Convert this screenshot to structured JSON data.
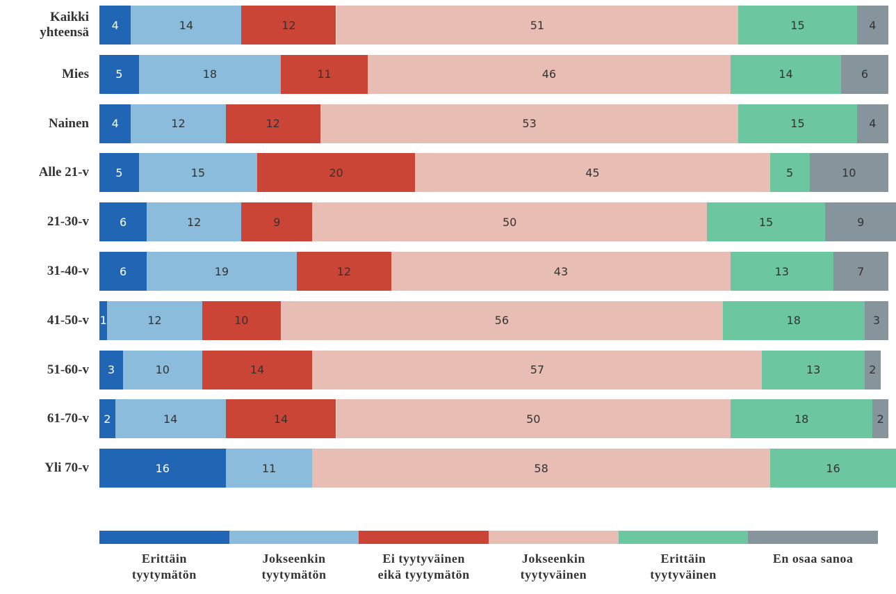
{
  "chart_data": {
    "type": "stacked-bar-horizontal",
    "categories": [
      "Kaikki yhteensä",
      "Mies",
      "Nainen",
      "Alle 21-v",
      "21-30-v",
      "31-40-v",
      "41-50-v",
      "51-60-v",
      "61-70-v",
      "Yli 70-v"
    ],
    "series": [
      {
        "name": "Erittäin tyytymätön",
        "color": "#2166b5",
        "values": [
          4,
          5,
          4,
          5,
          6,
          6,
          1,
          3,
          2,
          16
        ]
      },
      {
        "name": "Jokseenkin tyytymätön",
        "color": "#8bbcdb",
        "values": [
          14,
          18,
          12,
          15,
          12,
          19,
          12,
          10,
          14,
          11
        ]
      },
      {
        "name": "Ei tyytyväinen eikä tyytymätön",
        "color": "#cb4536",
        "values": [
          12,
          11,
          12,
          20,
          9,
          12,
          10,
          14,
          14,
          null
        ]
      },
      {
        "name": "Jokseenkin tyytyväinen",
        "color": "#e8bdb3",
        "values": [
          51,
          46,
          53,
          45,
          50,
          43,
          56,
          57,
          50,
          58
        ]
      },
      {
        "name": "Erittäin tyytyväinen",
        "color": "#6cc6a0",
        "values": [
          15,
          14,
          15,
          5,
          15,
          13,
          18,
          13,
          18,
          16
        ]
      },
      {
        "name": "En osaa sanoa",
        "color": "#86949c",
        "values": [
          4,
          6,
          4,
          10,
          9,
          7,
          3,
          2,
          2,
          null
        ]
      }
    ]
  }
}
